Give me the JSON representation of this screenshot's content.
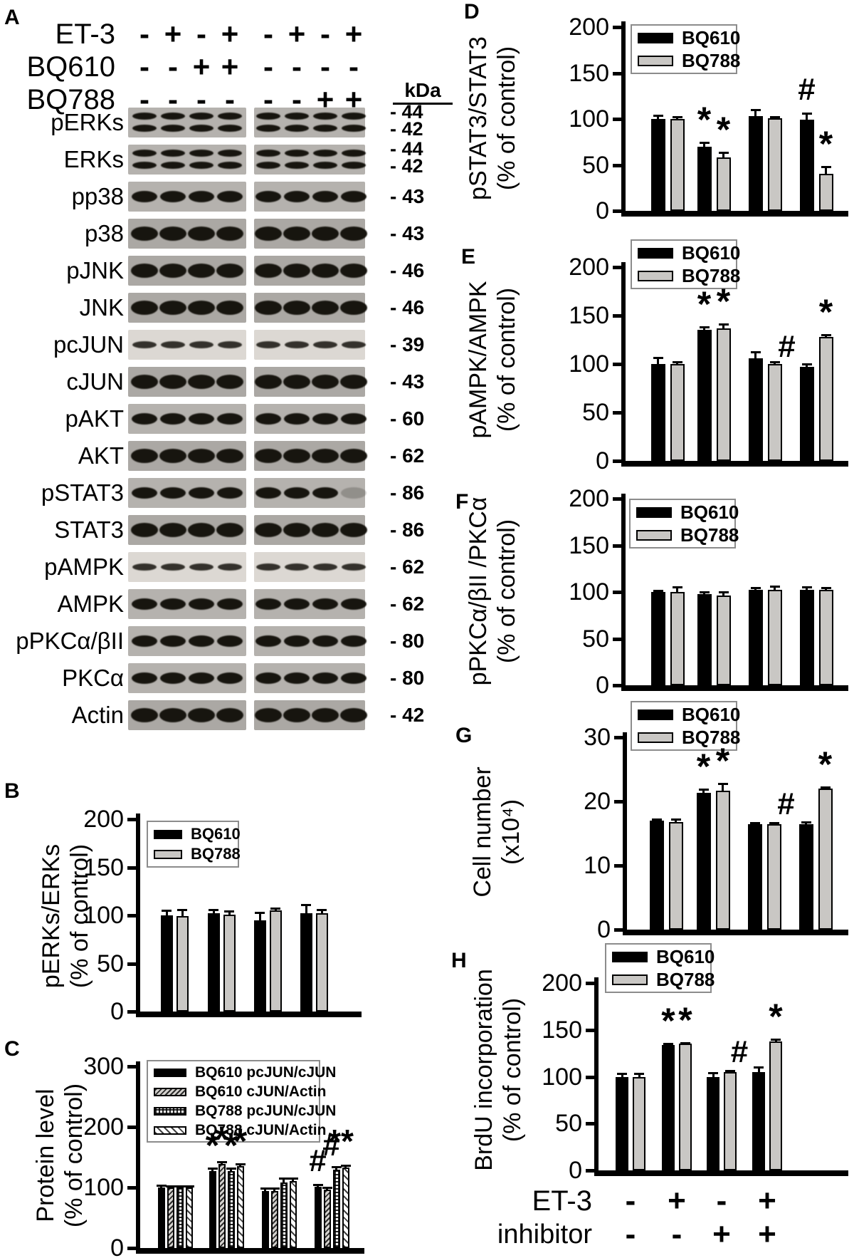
{
  "colors": {
    "bar_black": "#000000",
    "bar_gray": "#c9c7c4"
  },
  "panelA": {
    "label": "A",
    "kda_header": "kDa",
    "treatments": [
      {
        "label": "ET-3",
        "signs": [
          "-",
          "+",
          "-",
          "+",
          "-",
          "+",
          "-",
          "+"
        ]
      },
      {
        "label": "BQ610",
        "signs": [
          "-",
          "-",
          "+",
          "+",
          "-",
          "-",
          "-",
          "-"
        ]
      },
      {
        "label": "BQ788",
        "signs": [
          "-",
          "-",
          "-",
          "-",
          "-",
          "-",
          "+",
          "+"
        ]
      }
    ],
    "blots": [
      {
        "label": "pERKs",
        "kda": [
          "- 44",
          "- 42"
        ],
        "bands": 2,
        "shade": "mid"
      },
      {
        "label": "ERKs",
        "kda": [
          "- 44",
          "- 42"
        ],
        "bands": 2,
        "shade": "mid"
      },
      {
        "label": "pp38",
        "kda": [
          "- 43"
        ],
        "bands": 1,
        "shade": "mid"
      },
      {
        "label": "p38",
        "kda": [
          "- 43"
        ],
        "bands": 1,
        "shade": "dark"
      },
      {
        "label": "pJNK",
        "kda": [
          "- 46"
        ],
        "bands": 1,
        "shade": "dark"
      },
      {
        "label": "JNK",
        "kda": [
          "- 46"
        ],
        "bands": 1,
        "shade": "dark"
      },
      {
        "label": "pcJUN",
        "kda": [
          "- 39"
        ],
        "bands": 1,
        "shade": "light"
      },
      {
        "label": "cJUN",
        "kda": [
          "- 43"
        ],
        "bands": 1,
        "shade": "dark"
      },
      {
        "label": "pAKT",
        "kda": [
          "- 60"
        ],
        "bands": 1,
        "shade": "mid"
      },
      {
        "label": "AKT",
        "kda": [
          "- 62"
        ],
        "bands": 1,
        "shade": "dark"
      },
      {
        "label": "pSTAT3",
        "kda": [
          "- 86"
        ],
        "bands": 1,
        "shade": "mid",
        "faint_right": [
          3
        ]
      },
      {
        "label": "STAT3",
        "kda": [
          "- 86"
        ],
        "bands": 1,
        "shade": "dark"
      },
      {
        "label": "pAMPK",
        "kda": [
          "- 62"
        ],
        "bands": 1,
        "shade": "light"
      },
      {
        "label": "AMPK",
        "kda": [
          "- 62"
        ],
        "bands": 1,
        "shade": "mid"
      },
      {
        "label": "pPKCα/βII",
        "kda": [
          "- 80"
        ],
        "bands": 1,
        "shade": "mid"
      },
      {
        "label": "PKCα",
        "kda": [
          "- 80"
        ],
        "bands": 1,
        "shade": "mid"
      },
      {
        "label": "Actin",
        "kda": [
          "- 42"
        ],
        "bands": 1,
        "shade": "dark"
      }
    ]
  },
  "chart_data": [
    {
      "id": "B",
      "panel": "B",
      "type": "bar",
      "ylabel": [
        "pERKs/ERKs",
        "(% of control)"
      ],
      "ticks": [
        0,
        50,
        100,
        150,
        200
      ],
      "ylim": [
        0,
        200
      ],
      "series": [
        {
          "name": "BQ610",
          "pattern": "solid-black",
          "values": [
            100,
            102,
            95,
            102
          ],
          "errors": [
            6,
            5,
            9,
            10
          ]
        },
        {
          "name": "BQ788",
          "pattern": "solid-gray",
          "values": [
            99,
            101,
            105,
            102
          ],
          "errors": [
            8,
            4,
            3,
            5
          ]
        }
      ],
      "annotations": []
    },
    {
      "id": "C",
      "panel": "C",
      "type": "bar",
      "ylabel": [
        "Protein level",
        "(% of control)"
      ],
      "ticks": [
        0,
        100,
        200,
        300
      ],
      "ylim": [
        0,
        300
      ],
      "series": [
        {
          "name": "BQ610 pcJUN/cJUN",
          "pattern": "solid-black",
          "values": [
            100,
            127,
            94,
            101
          ],
          "errors": [
            5,
            6,
            6,
            5
          ]
        },
        {
          "name": "BQ610 cJUN/Actin",
          "pattern": "hatch-gray",
          "values": [
            100,
            139,
            94,
            97
          ],
          "errors": [
            4,
            5,
            6,
            4
          ]
        },
        {
          "name": "BQ788 pcJUN/cJUN",
          "pattern": "checker",
          "values": [
            100,
            127,
            108,
            129
          ],
          "errors": [
            4,
            6,
            8,
            6
          ]
        },
        {
          "name": "BQ788 cJUN/Actin",
          "pattern": "hatch-white",
          "values": [
            100,
            135,
            111,
            133
          ],
          "errors": [
            4,
            5,
            6,
            5
          ]
        }
      ],
      "annotations": [
        {
          "group": 1,
          "bar": 0,
          "text": "*"
        },
        {
          "group": 1,
          "bar": 1,
          "text": "*"
        },
        {
          "group": 1,
          "bar": 2,
          "text": "*"
        },
        {
          "group": 1,
          "bar": 3,
          "text": "*"
        },
        {
          "group": 3,
          "bar": 0,
          "text": "#"
        },
        {
          "group": 3,
          "bar": 1,
          "text": "#"
        },
        {
          "group": 3,
          "bars": [
            2,
            3
          ],
          "text": "**"
        }
      ]
    },
    {
      "id": "D",
      "panel": "D",
      "type": "bar",
      "ylabel": [
        "pSTAT3/STAT3",
        "(% of control)"
      ],
      "ticks": [
        0,
        50,
        100,
        150,
        200
      ],
      "ylim": [
        0,
        200
      ],
      "series": [
        {
          "name": "BQ610",
          "pattern": "solid-black",
          "values": [
            100,
            70,
            103,
            99
          ],
          "errors": [
            5,
            5,
            8,
            8
          ]
        },
        {
          "name": "BQ788",
          "pattern": "solid-gray",
          "values": [
            100,
            58,
            101,
            40
          ],
          "errors": [
            3,
            6,
            2,
            9
          ]
        }
      ],
      "annotations": [
        {
          "group": 1,
          "bar": 0,
          "text": "*"
        },
        {
          "group": 1,
          "bar": 1,
          "text": "*"
        },
        {
          "group": 3,
          "bar": 0,
          "text": "#"
        },
        {
          "group": 3,
          "bar": 1,
          "text": "*"
        }
      ]
    },
    {
      "id": "E",
      "panel": "E",
      "type": "bar",
      "ylabel": [
        "pAMPK/AMPK",
        "(% of control)"
      ],
      "ticks": [
        0,
        50,
        100,
        150,
        200
      ],
      "ylim": [
        0,
        200
      ],
      "series": [
        {
          "name": "BQ610",
          "pattern": "solid-black",
          "values": [
            100,
            135,
            106,
            97
          ],
          "errors": [
            7,
            4,
            7,
            4
          ]
        },
        {
          "name": "BQ788",
          "pattern": "solid-gray",
          "values": [
            100,
            137,
            100,
            128
          ],
          "errors": [
            3,
            5,
            3,
            3
          ]
        }
      ],
      "annotations": [
        {
          "group": 1,
          "bar": 0,
          "text": "*"
        },
        {
          "group": 1,
          "bar": 1,
          "text": "*"
        },
        {
          "group": 3,
          "bar": 0,
          "text": "#"
        },
        {
          "group": 3,
          "bar": 1,
          "text": "*"
        }
      ]
    },
    {
      "id": "F",
      "panel": "F",
      "type": "bar",
      "ylabel": [
        "pPKCα/βII /PKCα",
        "(% of control)"
      ],
      "ticks": [
        0,
        50,
        100,
        150,
        200
      ],
      "ylim": [
        0,
        200
      ],
      "series": [
        {
          "name": "BQ610",
          "pattern": "solid-black",
          "values": [
            100,
            98,
            102,
            102
          ],
          "errors": [
            2,
            3,
            3,
            4
          ]
        },
        {
          "name": "BQ788",
          "pattern": "solid-gray",
          "values": [
            100,
            96,
            102,
            102
          ],
          "errors": [
            6,
            5,
            5,
            3
          ]
        }
      ],
      "annotations": []
    },
    {
      "id": "G",
      "panel": "G",
      "type": "bar",
      "ylabel": [
        "Cell number",
        "(x10⁴)"
      ],
      "ticks": [
        0,
        10,
        20,
        30
      ],
      "ylim": [
        0,
        30
      ],
      "series": [
        {
          "name": "BQ610",
          "pattern": "solid-black",
          "values": [
            17,
            21.3,
            16.4,
            16.5
          ],
          "errors": [
            0.3,
            0.7,
            0.4,
            0.4
          ]
        },
        {
          "name": "BQ788",
          "pattern": "solid-gray",
          "values": [
            16.8,
            21.7,
            16.4,
            22
          ],
          "errors": [
            0.5,
            1.2,
            0.4,
            0.3
          ]
        }
      ],
      "annotations": [
        {
          "group": 1,
          "bar": 0,
          "text": "*"
        },
        {
          "group": 1,
          "bar": 1,
          "text": "*"
        },
        {
          "group": 3,
          "bar": 0,
          "text": "#"
        },
        {
          "group": 3,
          "bar": 1,
          "text": "*"
        }
      ]
    },
    {
      "id": "H",
      "panel": "H",
      "type": "bar",
      "ylabel": [
        "BrdU incorporation",
        "(% of control)"
      ],
      "ticks": [
        0,
        50,
        100,
        150,
        200
      ],
      "ylim": [
        0,
        200
      ],
      "series": [
        {
          "name": "BQ610",
          "pattern": "solid-black",
          "values": [
            100,
            134,
            100,
            105
          ],
          "errors": [
            4,
            2,
            5,
            6
          ]
        },
        {
          "name": "BQ788",
          "pattern": "solid-gray",
          "values": [
            100,
            135,
            105,
            138
          ],
          "errors": [
            4,
            2,
            2,
            3
          ]
        }
      ],
      "annotations": [
        {
          "group": 1,
          "bar": 0,
          "text": "*"
        },
        {
          "group": 1,
          "bar": 1,
          "text": "*"
        },
        {
          "group": 3,
          "bar": 0,
          "text": "#"
        },
        {
          "group": 3,
          "bar": 1,
          "text": "*"
        }
      ]
    }
  ],
  "xaxis": {
    "rows": [
      {
        "label": "ET-3",
        "signs": [
          "-",
          "+",
          "-",
          "+"
        ]
      },
      {
        "label": "inhibitor",
        "signs": [
          "-",
          "-",
          "+",
          "+"
        ]
      }
    ]
  }
}
